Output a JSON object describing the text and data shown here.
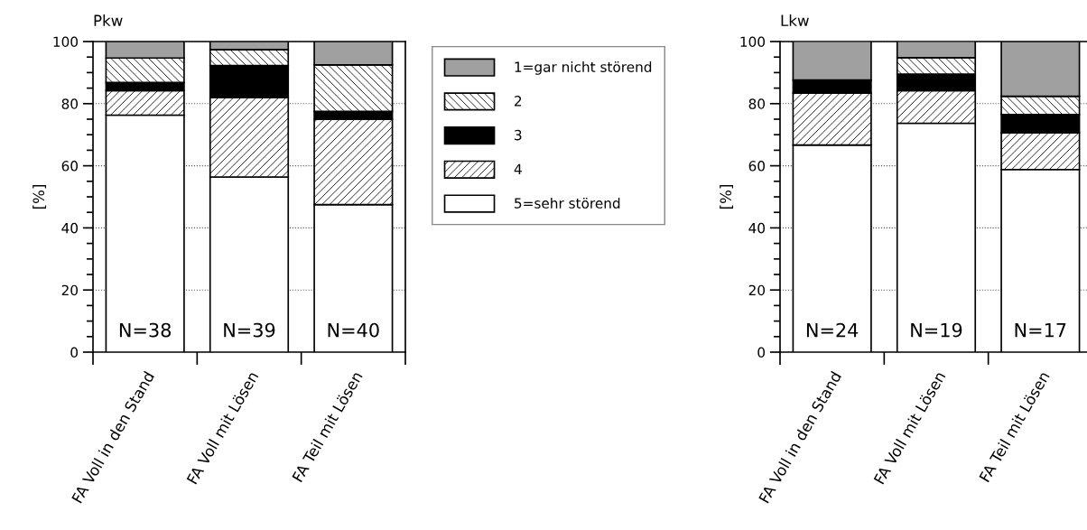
{
  "chart_data": [
    {
      "type": "bar",
      "title": "Pkw",
      "ylabel": "[%]",
      "stacked": true,
      "categories": [
        "FA Voll in den Stand",
        "FA Voll mit Lösen",
        "FA Teil mit Lösen"
      ],
      "ylim": [
        0,
        100
      ],
      "yticks": [
        0,
        20,
        40,
        60,
        80,
        100
      ],
      "grid": "y",
      "legend": "right",
      "series": [
        {
          "name": "5=sehr störend",
          "color": "#ffffff",
          "values": [
            76.3,
            56.4,
            47.5
          ]
        },
        {
          "name": "4",
          "color": "#ffffff",
          "values": [
            7.9,
            25.6,
            27.5
          ]
        },
        {
          "name": "3",
          "color": "#000000",
          "values": [
            2.6,
            10.3,
            2.5
          ]
        },
        {
          "name": "2",
          "color": "#ffffff",
          "values": [
            7.9,
            5.1,
            15.0
          ]
        },
        {
          "name": "1=gar nicht störend",
          "color": "#a0a0a0",
          "values": [
            5.3,
            2.6,
            7.5
          ]
        }
      ],
      "annotations": [
        "N=38",
        "N=39",
        "N=40"
      ]
    },
    {
      "type": "bar",
      "title": "Lkw",
      "ylabel": "[%]",
      "stacked": true,
      "categories": [
        "FA Voll in den Stand",
        "FA Voll mit Lösen",
        "FA Teil mit Lösen"
      ],
      "ylim": [
        0,
        100
      ],
      "yticks": [
        0,
        20,
        40,
        60,
        80,
        100
      ],
      "grid": "y",
      "series": [
        {
          "color": "#ffffff",
          "values": [
            66.7,
            73.7,
            58.8
          ]
        },
        {
          "color": "#ffffff",
          "values": [
            16.7,
            10.5,
            11.8
          ]
        },
        {
          "color": "#000000",
          "values": [
            4.2,
            5.3,
            5.9
          ]
        },
        {
          "color": "#ffffff",
          "values": [
            0,
            5.3,
            5.9
          ]
        },
        {
          "color": "#a0a0a0",
          "values": [
            12.5,
            5.3,
            17.6
          ]
        }
      ],
      "annotations": [
        "N=24",
        "N=19",
        "N=17"
      ]
    }
  ]
}
